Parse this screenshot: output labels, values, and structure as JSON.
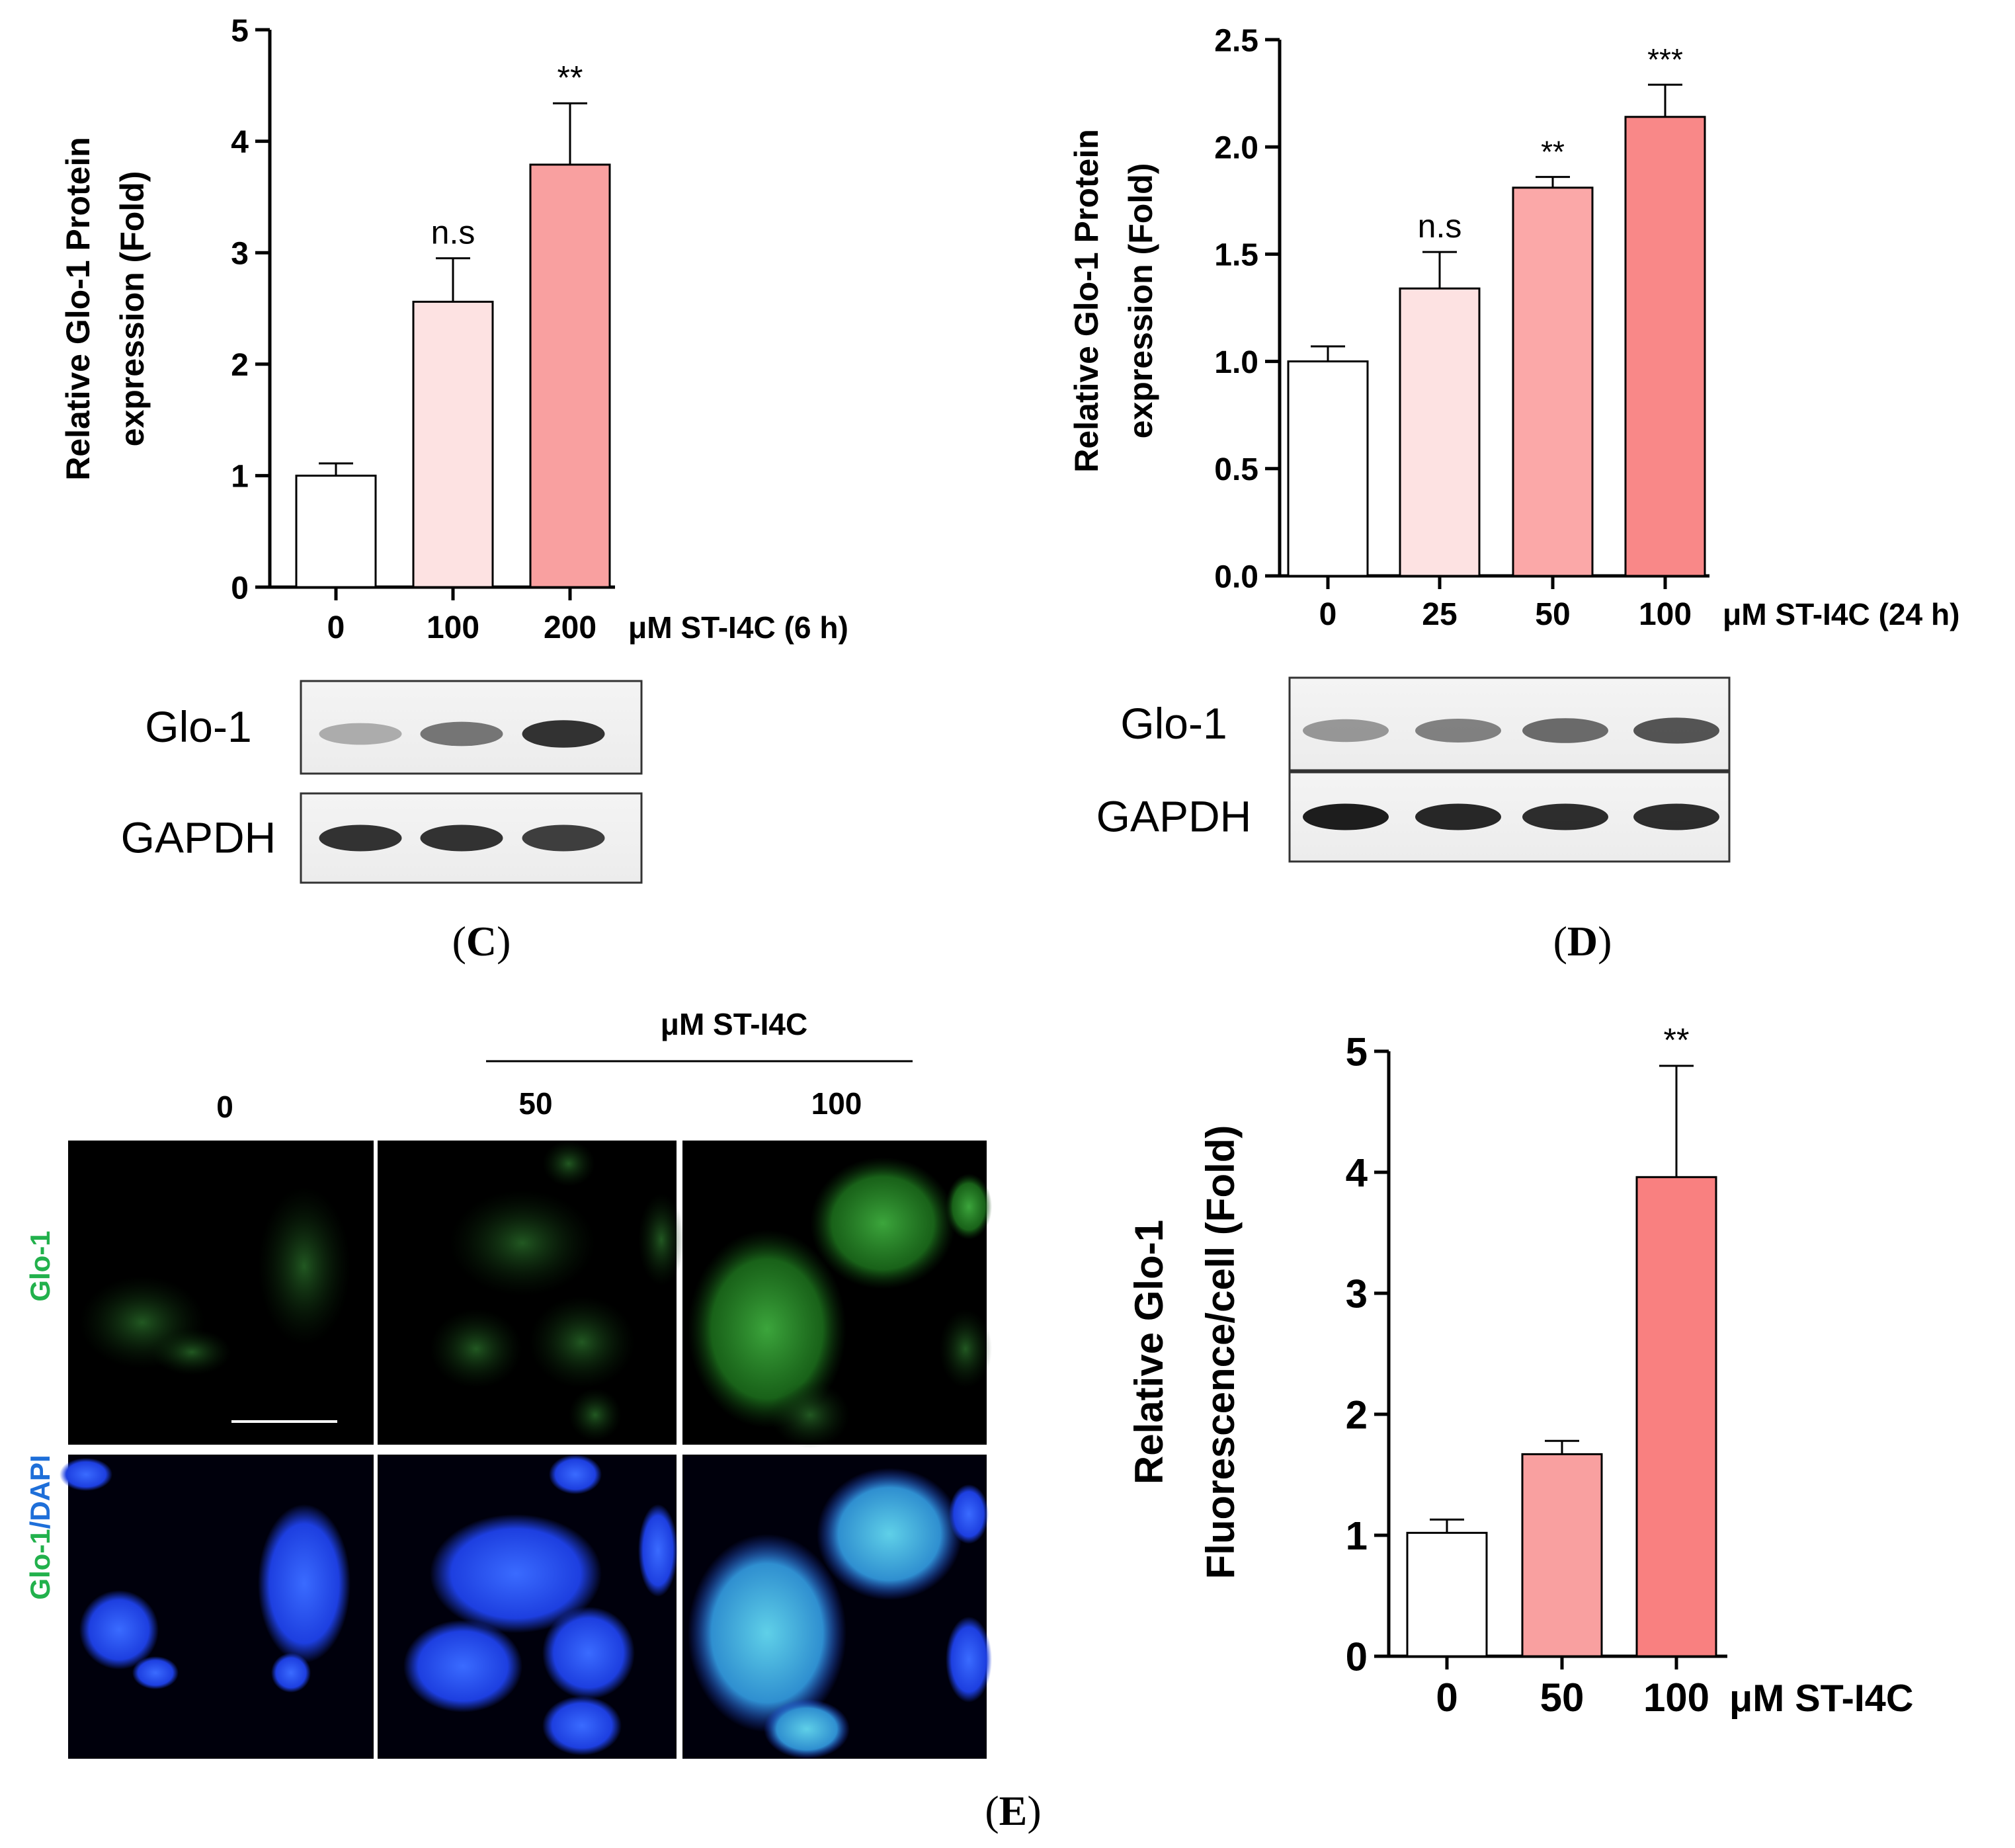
{
  "figure": {
    "panel_labels": {
      "C": "C",
      "D": "D",
      "E": "E"
    },
    "panel_E": {
      "header": "μM ST-I4C",
      "columns": [
        "0",
        "50",
        "100"
      ],
      "row_label_glo1": "Glo-1",
      "row_label_merge_a": "Glo-1",
      "row_label_merge_b": "/DAPI"
    }
  },
  "chart_data": [
    {
      "id": "C",
      "type": "bar",
      "ylabel_lines": [
        "Relative Glo-1 Protein",
        "expression (Fold)"
      ],
      "xlabel": "μM ST-I4C (6 h)",
      "categories": [
        "0",
        "100",
        "200"
      ],
      "values": [
        1.0,
        2.56,
        3.79
      ],
      "errors": [
        0.11,
        0.39,
        0.55
      ],
      "significance": [
        "",
        "n.s",
        "**"
      ],
      "ylim": [
        0,
        5
      ],
      "yticks": [
        0,
        1,
        2,
        3,
        4,
        5
      ],
      "ytick_labels": [
        "0",
        "1",
        "2",
        "3",
        "4",
        "5"
      ],
      "colors": [
        "#ffffff",
        "#fde2e2",
        "#f9a0a0"
      ],
      "blot": {
        "labels": [
          "Glo-1",
          "GAPDH"
        ],
        "glo1_intensity": [
          0.3,
          0.55,
          0.85
        ],
        "gapdh_intensity": [
          0.85,
          0.85,
          0.8
        ]
      }
    },
    {
      "id": "D",
      "type": "bar",
      "ylabel_lines": [
        "Relative Glo-1 Protein",
        "expression (Fold)"
      ],
      "xlabel": "μM ST-I4C (24 h)",
      "categories": [
        "0",
        "25",
        "50",
        "100"
      ],
      "values": [
        1.0,
        1.34,
        1.81,
        2.14
      ],
      "errors": [
        0.07,
        0.17,
        0.05,
        0.15
      ],
      "significance": [
        "",
        "n.s",
        "**",
        "***"
      ],
      "ylim": [
        0,
        2.5
      ],
      "yticks": [
        0,
        0.5,
        1.0,
        1.5,
        2.0,
        2.5
      ],
      "ytick_labels": [
        "0.0",
        "0.5",
        "1.0",
        "1.5",
        "2.0",
        "2.5"
      ],
      "colors": [
        "#ffffff",
        "#fde2e2",
        "#fba8a8",
        "#f98888"
      ],
      "blot": {
        "labels": [
          "Glo-1",
          "GAPDH"
        ],
        "glo1_intensity": [
          0.4,
          0.5,
          0.6,
          0.7
        ],
        "gapdh_intensity": [
          0.95,
          0.9,
          0.88,
          0.88
        ]
      }
    },
    {
      "id": "E",
      "type": "bar",
      "ylabel_lines": [
        "Relative Glo-1",
        "Fluorescence/cell (Fold)"
      ],
      "xlabel": "μM ST-I4C",
      "categories": [
        "0",
        "50",
        "100"
      ],
      "values": [
        1.02,
        1.67,
        3.96
      ],
      "errors": [
        0.11,
        0.11,
        0.92
      ],
      "significance": [
        "",
        "",
        "**"
      ],
      "ylim": [
        0,
        5
      ],
      "yticks": [
        0,
        1,
        2,
        3,
        4,
        5
      ],
      "ytick_labels": [
        "0",
        "1",
        "2",
        "3",
        "4",
        "5"
      ],
      "colors": [
        "#ffffff",
        "#f9a0a0",
        "#f98080"
      ]
    }
  ]
}
